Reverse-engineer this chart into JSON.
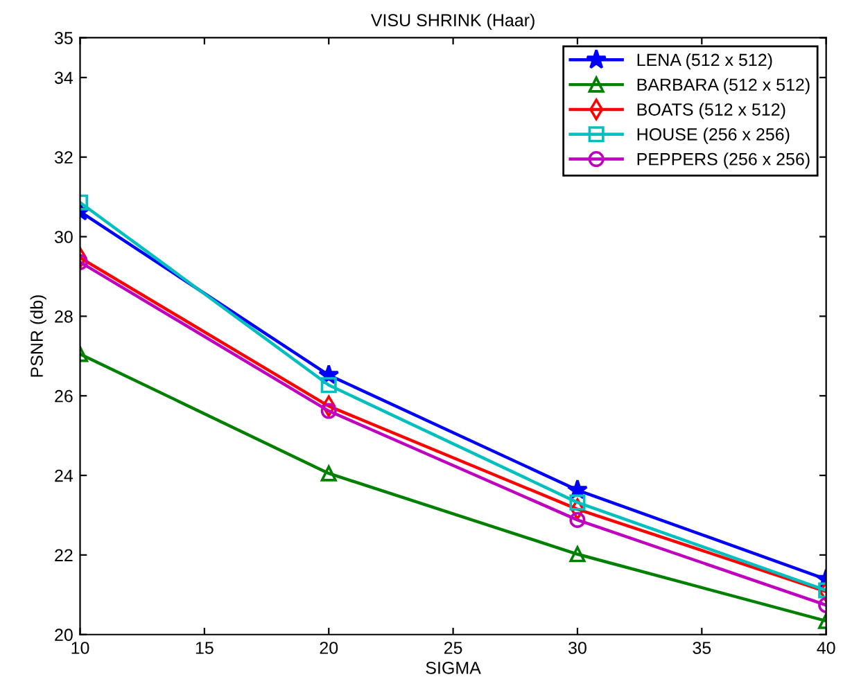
{
  "chart_data": {
    "type": "line",
    "title": "VISU SHRINK (Haar)",
    "xlabel": "SIGMA",
    "ylabel": "PSNR (db)",
    "x": [
      10,
      20,
      30,
      40
    ],
    "series": [
      {
        "name": "LENA (512 x 512)",
        "color": "#0000ff",
        "marker": "star",
        "values": [
          30.63,
          26.52,
          23.63,
          21.39
        ]
      },
      {
        "name": "BARBARA (512 x 512)",
        "color": "#008000",
        "marker": "triangle",
        "values": [
          27.05,
          24.05,
          22.02,
          20.34
        ]
      },
      {
        "name": "BOATS (512 x 512)",
        "color": "#ff0000",
        "marker": "diamond",
        "values": [
          29.47,
          25.74,
          23.15,
          21.08
        ]
      },
      {
        "name": "HOUSE (256 x 256)",
        "color": "#00bfbf",
        "marker": "square",
        "values": [
          30.86,
          26.27,
          23.32,
          21.11
        ]
      },
      {
        "name": "PEPPERS (256 x 256)",
        "color": "#bf00bf",
        "marker": "circle",
        "values": [
          29.36,
          25.62,
          22.88,
          20.74
        ]
      }
    ],
    "xlim": [
      10,
      40
    ],
    "xticks": [
      10,
      15,
      20,
      25,
      30,
      35,
      40
    ],
    "ylim": [
      20,
      35
    ],
    "yticks": [
      20,
      22,
      24,
      26,
      28,
      30,
      32,
      34,
      35
    ],
    "grid": false,
    "legend": "top right",
    "line_style": "solid"
  }
}
